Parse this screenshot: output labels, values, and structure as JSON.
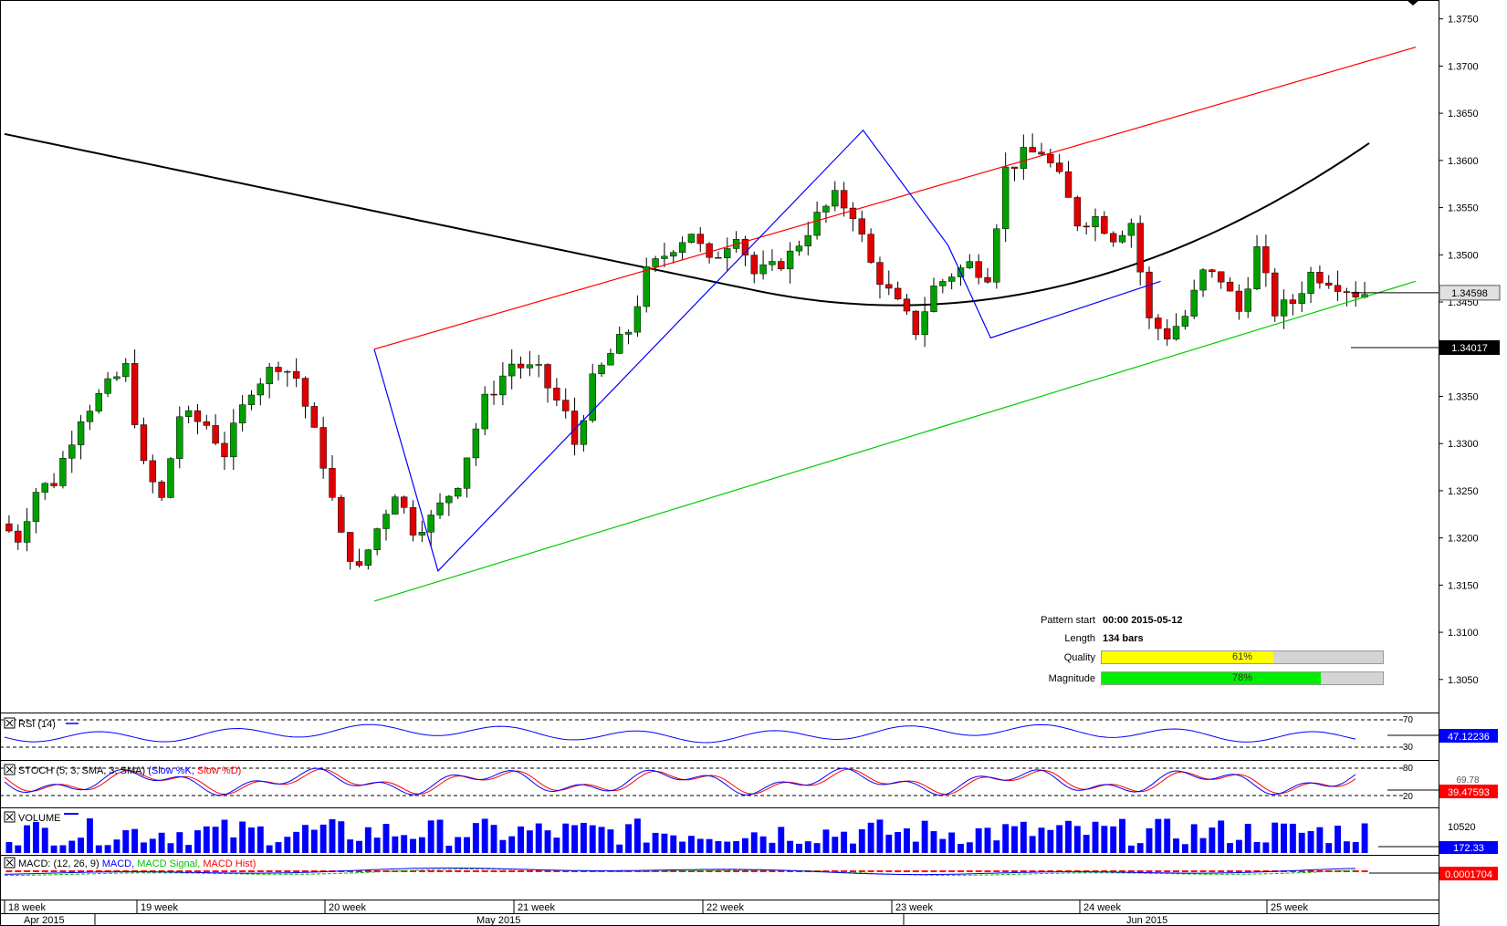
{
  "chart_data": {
    "type": "candlestick",
    "main": {
      "price_ticks": [
        "1.3750",
        "1.3700",
        "1.3650",
        "1.3600",
        "1.3550",
        "1.3500",
        "1.3450",
        "1.3350",
        "1.3300",
        "1.3250",
        "1.3200",
        "1.3150",
        "1.3100",
        "1.3050"
      ],
      "ylim": [
        1.3015,
        1.377
      ],
      "current_price_label": "1.34598",
      "ma_price_label": "1.34017",
      "pattern_lines": {
        "resistance": [
          [
            "2015-05-12",
            1.34
          ],
          [
            "2015-06-30",
            1.372
          ]
        ],
        "support": [
          [
            "2015-05-12",
            1.3133
          ],
          [
            "2015-06-30",
            1.3472
          ]
        ],
        "zigzag": [
          [
            "2015-05-12",
            1.34
          ],
          [
            "2015-05-15",
            1.3165
          ],
          [
            "2015-06-04",
            1.3632
          ],
          [
            "2015-06-08",
            1.351
          ],
          [
            "2015-06-10",
            1.3412
          ],
          [
            "2015-06-18",
            1.3472
          ]
        ]
      }
    },
    "x_axis": {
      "week_labels": [
        "18 week",
        "19 week",
        "20 week",
        "21 week",
        "22 week",
        "23 week",
        "24 week",
        "25 week"
      ],
      "month_labels": [
        "Apr 2015",
        "May 2015",
        "Jun 2015"
      ]
    },
    "pattern_info": {
      "pattern_start_label": "Pattern start",
      "pattern_start_value": "00:00 2015-05-12",
      "length_label": "Length",
      "length_value": "134 bars",
      "quality_label": "Quality",
      "quality_value": 61,
      "quality_text": "61%",
      "magnitude_label": "Magnitude",
      "magnitude_value": 78,
      "magnitude_text": "78%"
    },
    "indicators": {
      "rsi": {
        "title": "RSI (14)",
        "levels": [
          "70",
          "30"
        ],
        "value_label": "47.12236"
      },
      "stoch": {
        "title_prefix": "STOCH (5, 3, SMA, 3, SMA) ",
        "title_k": "(Slow %K,",
        "title_d": " Slow %D)",
        "levels": [
          "80",
          "20"
        ],
        "value_label": "39.47593",
        "hidden_label": "69.78"
      },
      "volume": {
        "title": "VOLUME",
        "level": "10520",
        "value_label": "172.33"
      },
      "macd": {
        "title_prefix": "MACD: (12, 26, 9) ",
        "title_macd": "MACD,",
        "title_signal": " MACD Signal,",
        "title_hist": " MACD Hist)",
        "value_label": "0.0001704"
      }
    },
    "colors": {
      "up_candle": "#00a000",
      "down_candle": "#e00000",
      "ma": "#000000",
      "resistance": "#ff0000",
      "support": "#00cc00",
      "zigzag": "#0000ff",
      "quality_fill": "#ffff00",
      "magnitude_fill": "#00ee00",
      "rsi_line": "#0000ff",
      "stoch_k": "#0000ff",
      "stoch_d": "#ff0000",
      "volume": "#0000ff",
      "macd_line": "#0000ff",
      "macd_signal": "#00c000",
      "macd_hist": "#ff0000"
    }
  }
}
